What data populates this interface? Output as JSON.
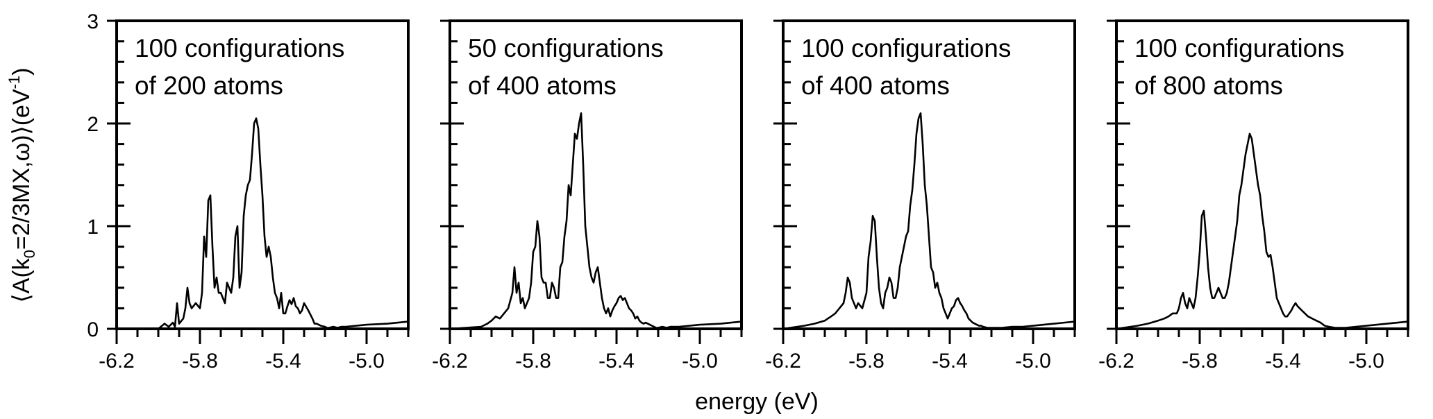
{
  "chart_data": {
    "type": "line",
    "ylabel_parts": [
      "⟨A(k",
      "0",
      "=2/3MX,ω)⟩(eV",
      "-1",
      ")"
    ],
    "xlabel": "energy (eV)",
    "xlim": [
      -6.2,
      -4.8
    ],
    "ylim": [
      0,
      3
    ],
    "x_ticks": [
      -6.2,
      -5.8,
      -5.4,
      -5.0
    ],
    "x_tick_labels": [
      "-6.2",
      "-5.8",
      "-5.4",
      "-5.0"
    ],
    "y_ticks": [
      0,
      1,
      2,
      3
    ],
    "y_tick_labels": [
      "0",
      "1",
      "2",
      "3"
    ],
    "panels": [
      {
        "annotation_lines": [
          "100 configurations",
          "of 200 atoms"
        ],
        "x": [
          -6.2,
          -6.0,
          -5.97,
          -5.95,
          -5.93,
          -5.92,
          -5.91,
          -5.9,
          -5.88,
          -5.87,
          -5.86,
          -5.85,
          -5.84,
          -5.82,
          -5.8,
          -5.79,
          -5.78,
          -5.77,
          -5.76,
          -5.75,
          -5.74,
          -5.73,
          -5.72,
          -5.71,
          -5.7,
          -5.69,
          -5.68,
          -5.67,
          -5.66,
          -5.65,
          -5.64,
          -5.63,
          -5.62,
          -5.61,
          -5.6,
          -5.59,
          -5.58,
          -5.57,
          -5.56,
          -5.55,
          -5.54,
          -5.53,
          -5.52,
          -5.51,
          -5.5,
          -5.49,
          -5.48,
          -5.47,
          -5.46,
          -5.45,
          -5.44,
          -5.43,
          -5.42,
          -5.41,
          -5.4,
          -5.39,
          -5.38,
          -5.37,
          -5.36,
          -5.35,
          -5.34,
          -5.33,
          -5.32,
          -5.31,
          -5.3,
          -5.28,
          -5.26,
          -5.25,
          -5.24,
          -5.22,
          -5.2,
          -5.19,
          -5.18,
          -5.16,
          -5.14,
          -5.12,
          -5.1,
          -5.05,
          -5.0,
          -4.9,
          -4.8
        ],
        "y": [
          0.0,
          0.0,
          0.05,
          0.02,
          0.06,
          0.02,
          0.25,
          0.05,
          0.1,
          0.2,
          0.4,
          0.25,
          0.2,
          0.25,
          0.2,
          0.35,
          0.9,
          0.7,
          1.25,
          1.3,
          0.8,
          0.4,
          0.5,
          0.35,
          0.35,
          0.3,
          0.25,
          0.45,
          0.4,
          0.35,
          0.5,
          0.9,
          1.0,
          0.4,
          0.55,
          1.1,
          1.3,
          1.4,
          1.45,
          1.7,
          2.0,
          2.05,
          1.95,
          1.6,
          1.3,
          0.9,
          0.7,
          0.8,
          0.7,
          0.5,
          0.35,
          0.3,
          0.2,
          0.35,
          0.15,
          0.15,
          0.22,
          0.28,
          0.24,
          0.3,
          0.22,
          0.2,
          0.15,
          0.18,
          0.25,
          0.18,
          0.1,
          0.05,
          0.05,
          0.03,
          0.02,
          0.01,
          0.01,
          0.02,
          0.01,
          0.02,
          0.02,
          0.03,
          0.04,
          0.05,
          0.07
        ]
      },
      {
        "annotation_lines": [
          "50 configurations",
          "of 400 atoms"
        ],
        "x": [
          -6.2,
          -6.05,
          -6.02,
          -6.0,
          -5.98,
          -5.96,
          -5.94,
          -5.92,
          -5.9,
          -5.89,
          -5.88,
          -5.87,
          -5.86,
          -5.85,
          -5.84,
          -5.83,
          -5.82,
          -5.81,
          -5.8,
          -5.79,
          -5.78,
          -5.77,
          -5.76,
          -5.75,
          -5.74,
          -5.73,
          -5.72,
          -5.71,
          -5.7,
          -5.69,
          -5.68,
          -5.67,
          -5.66,
          -5.65,
          -5.64,
          -5.63,
          -5.62,
          -5.61,
          -5.6,
          -5.59,
          -5.58,
          -5.57,
          -5.56,
          -5.55,
          -5.54,
          -5.53,
          -5.52,
          -5.51,
          -5.5,
          -5.49,
          -5.48,
          -5.47,
          -5.46,
          -5.45,
          -5.44,
          -5.43,
          -5.42,
          -5.41,
          -5.4,
          -5.39,
          -5.38,
          -5.37,
          -5.36,
          -5.35,
          -5.34,
          -5.33,
          -5.32,
          -5.31,
          -5.3,
          -5.29,
          -5.28,
          -5.27,
          -5.26,
          -5.25,
          -5.24,
          -5.23,
          -5.22,
          -5.21,
          -5.2,
          -5.18,
          -5.16,
          -5.14,
          -5.12,
          -5.1,
          -5.05,
          -5.0,
          -4.9,
          -4.8
        ],
        "y": [
          0.0,
          0.02,
          0.05,
          0.08,
          0.12,
          0.1,
          0.15,
          0.2,
          0.35,
          0.6,
          0.35,
          0.45,
          0.25,
          0.3,
          0.2,
          0.25,
          0.3,
          0.45,
          0.75,
          0.8,
          1.05,
          0.9,
          0.5,
          0.45,
          0.45,
          0.3,
          0.3,
          0.45,
          0.4,
          0.3,
          0.3,
          0.6,
          0.65,
          0.9,
          1.05,
          1.4,
          1.3,
          1.6,
          1.9,
          1.85,
          2.0,
          2.1,
          1.6,
          1.0,
          0.8,
          0.6,
          0.5,
          0.45,
          0.55,
          0.6,
          0.45,
          0.3,
          0.2,
          0.15,
          0.2,
          0.12,
          0.18,
          0.22,
          0.25,
          0.3,
          0.32,
          0.28,
          0.3,
          0.25,
          0.2,
          0.18,
          0.15,
          0.1,
          0.12,
          0.08,
          0.06,
          0.05,
          0.06,
          0.05,
          0.04,
          0.03,
          0.02,
          0.01,
          0.01,
          0.02,
          0.01,
          0.02,
          0.02,
          0.02,
          0.03,
          0.04,
          0.05,
          0.07
        ]
      },
      {
        "annotation_lines": [
          "100 configurations",
          "of 400 atoms"
        ],
        "x": [
          -6.2,
          -6.1,
          -6.05,
          -6.0,
          -5.97,
          -5.95,
          -5.93,
          -5.91,
          -5.9,
          -5.89,
          -5.88,
          -5.87,
          -5.86,
          -5.85,
          -5.84,
          -5.82,
          -5.8,
          -5.79,
          -5.78,
          -5.77,
          -5.76,
          -5.75,
          -5.74,
          -5.73,
          -5.72,
          -5.71,
          -5.7,
          -5.69,
          -5.68,
          -5.67,
          -5.66,
          -5.65,
          -5.64,
          -5.63,
          -5.62,
          -5.61,
          -5.6,
          -5.59,
          -5.58,
          -5.57,
          -5.56,
          -5.55,
          -5.54,
          -5.53,
          -5.52,
          -5.51,
          -5.5,
          -5.49,
          -5.48,
          -5.47,
          -5.46,
          -5.45,
          -5.44,
          -5.43,
          -5.42,
          -5.41,
          -5.4,
          -5.39,
          -5.38,
          -5.37,
          -5.36,
          -5.35,
          -5.34,
          -5.33,
          -5.32,
          -5.31,
          -5.3,
          -5.29,
          -5.28,
          -5.27,
          -5.26,
          -5.25,
          -5.24,
          -5.22,
          -5.2,
          -5.15,
          -5.1,
          -5.05,
          -5.0,
          -4.9,
          -4.8
        ],
        "y": [
          0.0,
          0.03,
          0.05,
          0.08,
          0.12,
          0.15,
          0.2,
          0.25,
          0.35,
          0.5,
          0.45,
          0.3,
          0.25,
          0.2,
          0.25,
          0.2,
          0.35,
          0.7,
          0.85,
          1.1,
          1.05,
          0.7,
          0.4,
          0.25,
          0.2,
          0.35,
          0.4,
          0.5,
          0.45,
          0.3,
          0.3,
          0.4,
          0.6,
          0.7,
          0.8,
          0.9,
          0.95,
          1.2,
          1.35,
          1.6,
          1.9,
          2.05,
          2.1,
          1.8,
          1.4,
          1.2,
          0.9,
          0.6,
          0.55,
          0.4,
          0.45,
          0.35,
          0.3,
          0.2,
          0.15,
          0.1,
          0.15,
          0.2,
          0.22,
          0.28,
          0.3,
          0.25,
          0.22,
          0.18,
          0.15,
          0.1,
          0.08,
          0.06,
          0.05,
          0.04,
          0.03,
          0.03,
          0.02,
          0.01,
          0.01,
          0.01,
          0.02,
          0.02,
          0.03,
          0.05,
          0.07
        ]
      },
      {
        "annotation_lines": [
          "100 configurations",
          "of 800 atoms"
        ],
        "x": [
          -6.2,
          -6.1,
          -6.05,
          -6.0,
          -5.97,
          -5.95,
          -5.93,
          -5.91,
          -5.9,
          -5.89,
          -5.88,
          -5.87,
          -5.86,
          -5.85,
          -5.84,
          -5.83,
          -5.82,
          -5.81,
          -5.8,
          -5.79,
          -5.78,
          -5.77,
          -5.76,
          -5.75,
          -5.74,
          -5.73,
          -5.72,
          -5.71,
          -5.7,
          -5.69,
          -5.68,
          -5.67,
          -5.66,
          -5.65,
          -5.64,
          -5.63,
          -5.62,
          -5.61,
          -5.6,
          -5.59,
          -5.58,
          -5.57,
          -5.56,
          -5.55,
          -5.54,
          -5.53,
          -5.52,
          -5.51,
          -5.5,
          -5.49,
          -5.48,
          -5.47,
          -5.46,
          -5.45,
          -5.44,
          -5.43,
          -5.42,
          -5.41,
          -5.4,
          -5.39,
          -5.38,
          -5.37,
          -5.36,
          -5.35,
          -5.34,
          -5.33,
          -5.32,
          -5.31,
          -5.3,
          -5.28,
          -5.26,
          -5.24,
          -5.22,
          -5.2,
          -5.18,
          -5.15,
          -5.1,
          -5.05,
          -5.0,
          -4.9,
          -4.8
        ],
        "y": [
          0.0,
          0.03,
          0.05,
          0.08,
          0.1,
          0.12,
          0.15,
          0.15,
          0.2,
          0.3,
          0.35,
          0.25,
          0.2,
          0.3,
          0.25,
          0.2,
          0.3,
          0.5,
          0.75,
          1.1,
          1.15,
          0.9,
          0.6,
          0.4,
          0.3,
          0.3,
          0.35,
          0.4,
          0.35,
          0.3,
          0.3,
          0.35,
          0.45,
          0.6,
          0.75,
          0.9,
          1.05,
          1.3,
          1.4,
          1.55,
          1.7,
          1.8,
          1.9,
          1.85,
          1.7,
          1.55,
          1.4,
          1.3,
          1.1,
          0.95,
          0.75,
          0.7,
          0.72,
          0.6,
          0.45,
          0.3,
          0.25,
          0.2,
          0.15,
          0.12,
          0.12,
          0.15,
          0.18,
          0.22,
          0.25,
          0.22,
          0.2,
          0.18,
          0.16,
          0.12,
          0.1,
          0.08,
          0.06,
          0.03,
          0.02,
          0.01,
          0.01,
          0.02,
          0.03,
          0.05,
          0.07
        ]
      }
    ]
  }
}
